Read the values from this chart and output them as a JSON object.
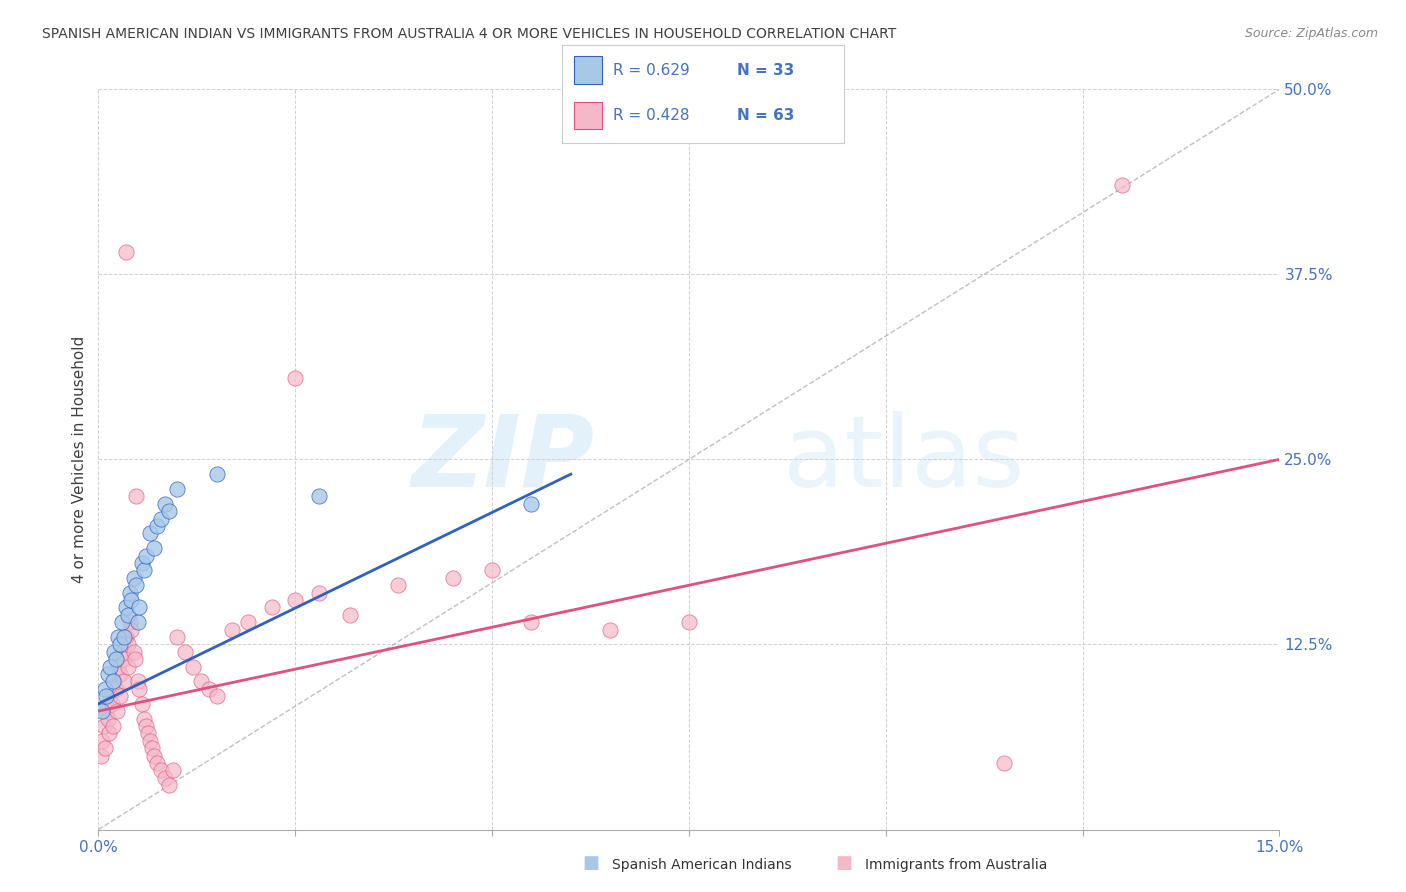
{
  "title": "SPANISH AMERICAN INDIAN VS IMMIGRANTS FROM AUSTRALIA 4 OR MORE VEHICLES IN HOUSEHOLD CORRELATION CHART",
  "source": "Source: ZipAtlas.com",
  "ylabel": "4 or more Vehicles in Household",
  "xlim": [
    0.0,
    15.0
  ],
  "ylim": [
    0.0,
    50.0
  ],
  "xticks": [
    0.0,
    2.5,
    5.0,
    7.5,
    10.0,
    12.5,
    15.0
  ],
  "yticks": [
    0.0,
    12.5,
    25.0,
    37.5,
    50.0
  ],
  "legend1_R": "0.629",
  "legend1_N": "33",
  "legend2_R": "0.428",
  "legend2_N": "63",
  "legend_label1": "Spanish American Indians",
  "legend_label2": "Immigrants from Australia",
  "blue_color": "#a8c8e8",
  "pink_color": "#f4b8c8",
  "blue_line_color": "#3060c0",
  "pink_line_color": "#e05080",
  "label_color": "#4472c4",
  "title_color": "#404040",
  "grid_color": "#cccccc",
  "watermark_zip": "ZIP",
  "watermark_atlas": "atlas",
  "blue_scatter_x": [
    0.05,
    0.08,
    0.1,
    0.12,
    0.15,
    0.18,
    0.2,
    0.22,
    0.25,
    0.28,
    0.3,
    0.32,
    0.35,
    0.38,
    0.4,
    0.42,
    0.45,
    0.48,
    0.5,
    0.52,
    0.55,
    0.58,
    0.6,
    0.65,
    0.7,
    0.75,
    0.8,
    0.85,
    0.9,
    1.0,
    1.5,
    2.8,
    5.5
  ],
  "blue_scatter_y": [
    8.0,
    9.5,
    9.0,
    10.5,
    11.0,
    10.0,
    12.0,
    11.5,
    13.0,
    12.5,
    14.0,
    13.0,
    15.0,
    14.5,
    16.0,
    15.5,
    17.0,
    16.5,
    14.0,
    15.0,
    18.0,
    17.5,
    18.5,
    20.0,
    19.0,
    20.5,
    21.0,
    22.0,
    21.5,
    23.0,
    24.0,
    22.5,
    22.0
  ],
  "pink_scatter_x": [
    0.03,
    0.05,
    0.07,
    0.08,
    0.1,
    0.12,
    0.13,
    0.15,
    0.17,
    0.18,
    0.2,
    0.22,
    0.23,
    0.25,
    0.27,
    0.28,
    0.3,
    0.32,
    0.33,
    0.35,
    0.37,
    0.38,
    0.4,
    0.42,
    0.45,
    0.47,
    0.5,
    0.52,
    0.55,
    0.58,
    0.6,
    0.63,
    0.65,
    0.68,
    0.7,
    0.75,
    0.8,
    0.85,
    0.9,
    0.95,
    1.0,
    1.1,
    1.2,
    1.3,
    1.4,
    1.5,
    1.7,
    1.9,
    2.2,
    2.5,
    2.8,
    3.2,
    3.8,
    4.5,
    5.0,
    5.5,
    6.5,
    7.5,
    11.5,
    13.0,
    2.5,
    0.48,
    0.35
  ],
  "pink_scatter_y": [
    5.0,
    6.0,
    7.0,
    5.5,
    8.0,
    7.5,
    6.5,
    9.0,
    8.5,
    7.0,
    10.0,
    9.5,
    8.0,
    11.0,
    10.5,
    9.0,
    12.0,
    11.5,
    10.0,
    13.0,
    12.5,
    11.0,
    14.0,
    13.5,
    12.0,
    11.5,
    10.0,
    9.5,
    8.5,
    7.5,
    7.0,
    6.5,
    6.0,
    5.5,
    5.0,
    4.5,
    4.0,
    3.5,
    3.0,
    4.0,
    13.0,
    12.0,
    11.0,
    10.0,
    9.5,
    9.0,
    13.5,
    14.0,
    15.0,
    15.5,
    16.0,
    14.5,
    16.5,
    17.0,
    17.5,
    14.0,
    13.5,
    14.0,
    4.5,
    43.5,
    30.5,
    22.5,
    39.0
  ],
  "blue_trend_x": [
    0.0,
    6.0
  ],
  "blue_trend_y": [
    8.5,
    24.0
  ],
  "pink_trend_x": [
    0.0,
    15.0
  ],
  "pink_trend_y": [
    8.0,
    25.0
  ],
  "ref_line_x": [
    0.0,
    15.0
  ],
  "ref_line_y": [
    0.0,
    50.0
  ]
}
